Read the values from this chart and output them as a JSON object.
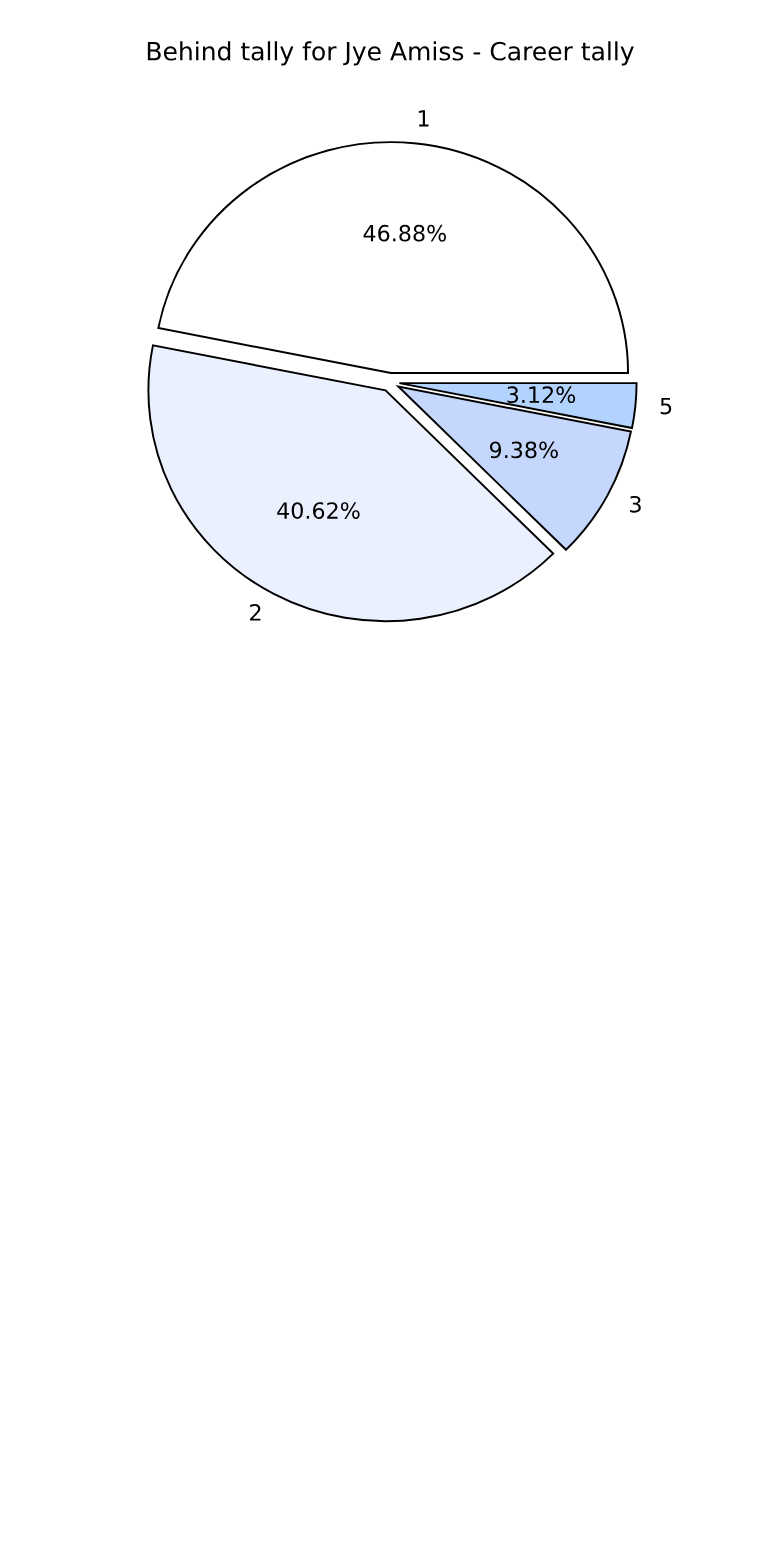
{
  "chart_data": {
    "type": "pie",
    "title": "Behind tally for Jye Amiss - Career tally",
    "categories": [
      "1",
      "2",
      "3",
      "5"
    ],
    "values": [
      46.88,
      40.62,
      9.38,
      3.12
    ],
    "value_labels": [
      "46.88%",
      "40.62%",
      "9.38%",
      "3.12%"
    ],
    "colors": [
      "#ffffff",
      "#eaf0fd",
      "#c5d7fc",
      "#b3d3ff"
    ]
  }
}
